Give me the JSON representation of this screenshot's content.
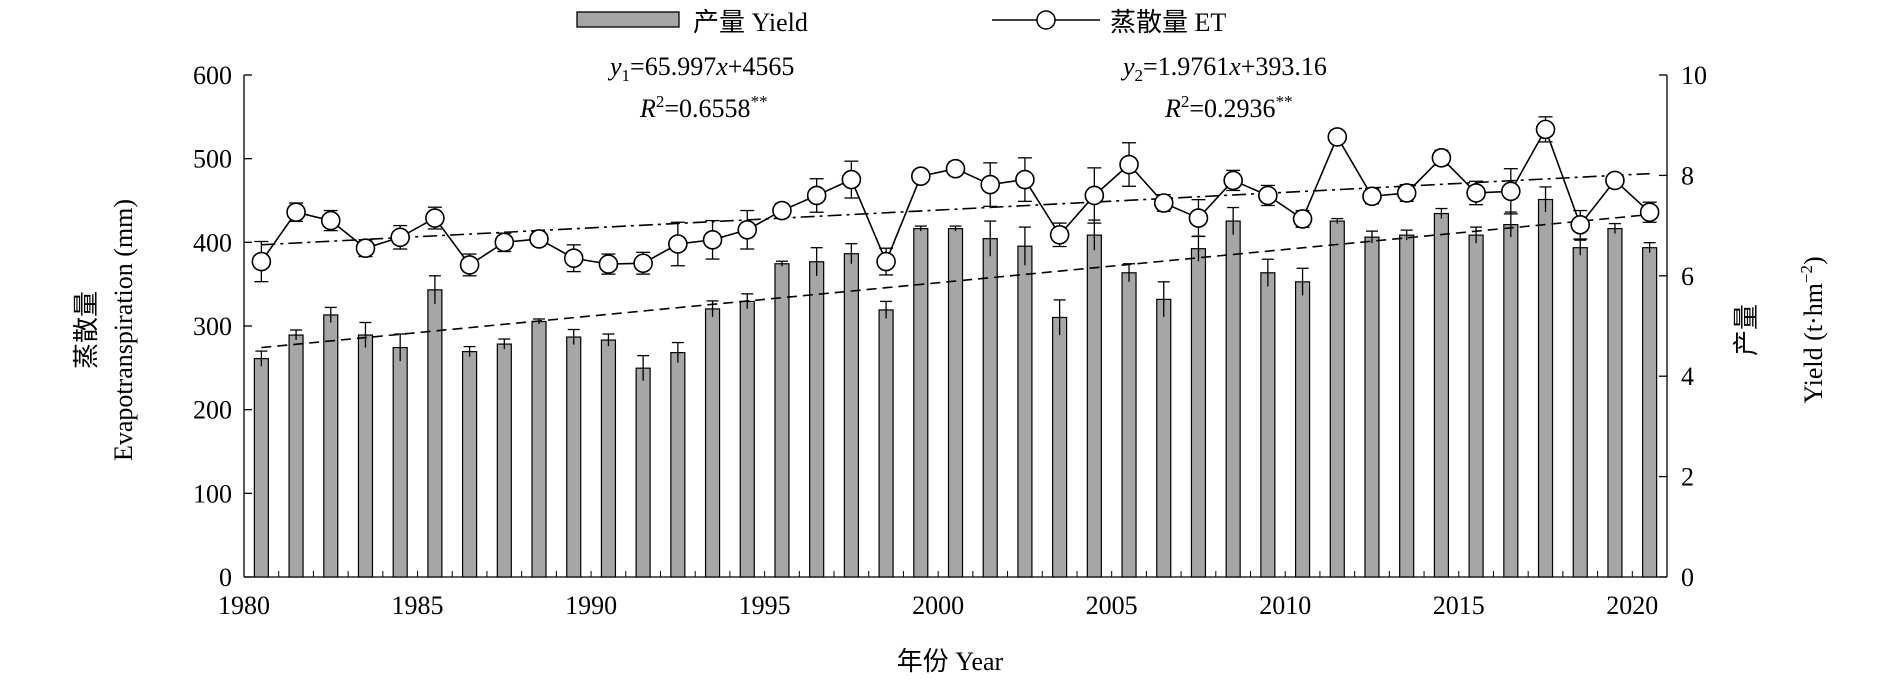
{
  "legend": {
    "yield_label": "产量 Yield",
    "et_label": "蒸散量 ET"
  },
  "equations": {
    "yield": {
      "y": "y",
      "sub": "1",
      "rhs": "=65.997",
      "x": "x",
      "tail": "+4565",
      "r2_lead": "R",
      "r2_sup": "2",
      "r2_value": "=0.6558",
      "sig": "**"
    },
    "et": {
      "y": "y",
      "sub": "2",
      "rhs": "=1.9761",
      "x": "x",
      "tail": "+393.16",
      "r2_lead": "R",
      "r2_sup": "2",
      "r2_value": "=0.2936",
      "sig": "**"
    }
  },
  "axes": {
    "x_title": "年份 Year",
    "left_title_cn": "蒸散量",
    "left_title_en": "Evapotranspiration (mm)",
    "right_title_cn": "产量",
    "right_title_en_main": "Yield (t·hm",
    "right_title_en_sup": "−2",
    "right_title_en_close": ")"
  },
  "chart_data": {
    "type": "bar+line",
    "x_ticks": [
      1980,
      1985,
      1990,
      1995,
      2000,
      2005,
      2010,
      2015,
      2020
    ],
    "left_axis": {
      "ylim": [
        0,
        600
      ],
      "ticks": [
        0,
        100,
        200,
        300,
        400,
        500,
        600
      ]
    },
    "right_axis": {
      "ylim": [
        0,
        10
      ],
      "ticks": [
        0,
        2,
        4,
        6,
        8,
        10
      ]
    },
    "categories": [
      1981,
      1982,
      1983,
      1984,
      1985,
      1986,
      1987,
      1988,
      1989,
      1990,
      1991,
      1992,
      1993,
      1994,
      1995,
      1996,
      1997,
      1998,
      1999,
      2000,
      2001,
      2002,
      2003,
      2004,
      2005,
      2006,
      2007,
      2008,
      2009,
      2010,
      2011,
      2012,
      2013,
      2014,
      2015,
      2016,
      2017,
      2018,
      2019,
      2020,
      2021
    ],
    "series": [
      {
        "name": "产量 Yield",
        "kind": "bar",
        "axis": "right",
        "color": "#a7a5a7",
        "values": [
          4.35,
          4.82,
          5.22,
          4.82,
          4.57,
          5.72,
          4.49,
          4.64,
          5.09,
          4.78,
          4.72,
          4.16,
          4.47,
          5.34,
          5.49,
          6.24,
          6.28,
          6.44,
          5.32,
          6.94,
          6.94,
          6.74,
          6.59,
          5.17,
          6.81,
          6.06,
          5.53,
          6.54,
          7.09,
          6.06,
          5.88,
          7.09,
          6.77,
          6.81,
          7.24,
          6.81,
          7.02,
          7.52,
          6.56,
          6.94,
          6.56
        ],
        "errors": [
          0.15,
          0.1,
          0.15,
          0.25,
          0.27,
          0.28,
          0.1,
          0.1,
          0.05,
          0.15,
          0.12,
          0.25,
          0.2,
          0.16,
          0.15,
          0.05,
          0.28,
          0.2,
          0.17,
          0.05,
          0.05,
          0.35,
          0.38,
          0.35,
          0.3,
          0.18,
          0.35,
          0.25,
          0.27,
          0.27,
          0.27,
          0.05,
          0.12,
          0.1,
          0.1,
          0.16,
          0.25,
          0.25,
          0.15,
          0.1,
          0.1
        ]
      },
      {
        "name": "蒸散量 ET",
        "kind": "line",
        "axis": "left",
        "color": "#000000",
        "values": [
          377,
          436,
          426,
          393,
          406,
          429,
          373,
          400,
          404,
          381,
          374,
          375,
          398,
          403,
          415,
          438,
          456,
          475,
          377,
          479,
          488,
          469,
          475,
          409,
          456,
          493,
          447,
          429,
          474,
          456,
          428,
          526,
          455,
          459,
          501,
          459,
          461,
          535,
          421,
          474,
          436
        ],
        "errors": [
          24,
          11,
          12,
          10,
          14,
          13,
          13,
          11,
          8,
          16,
          12,
          13,
          26,
          23,
          23,
          8,
          20,
          22,
          16,
          5,
          8,
          26,
          26,
          14,
          33,
          26,
          10,
          22,
          12,
          12,
          10,
          6,
          9,
          10,
          9,
          14,
          27,
          15,
          17,
          6,
          12
        ]
      }
    ],
    "trendlines": [
      {
        "series": "产量 Yield",
        "style": "dashed",
        "from": [
          1981,
          4.57
        ],
        "to": [
          2021,
          7.22
        ]
      },
      {
        "series": "蒸散量 ET",
        "style": "dash-dot",
        "from": [
          1981,
          397.1
        ],
        "to": [
          2021,
          482.1
        ]
      }
    ],
    "xlabel": "年份 Year",
    "ylabel_left": "蒸散量 Evapotranspiration (mm)",
    "ylabel_right": "产量 Yield (t·hm−2)",
    "grid": false,
    "legend_position": "top"
  }
}
